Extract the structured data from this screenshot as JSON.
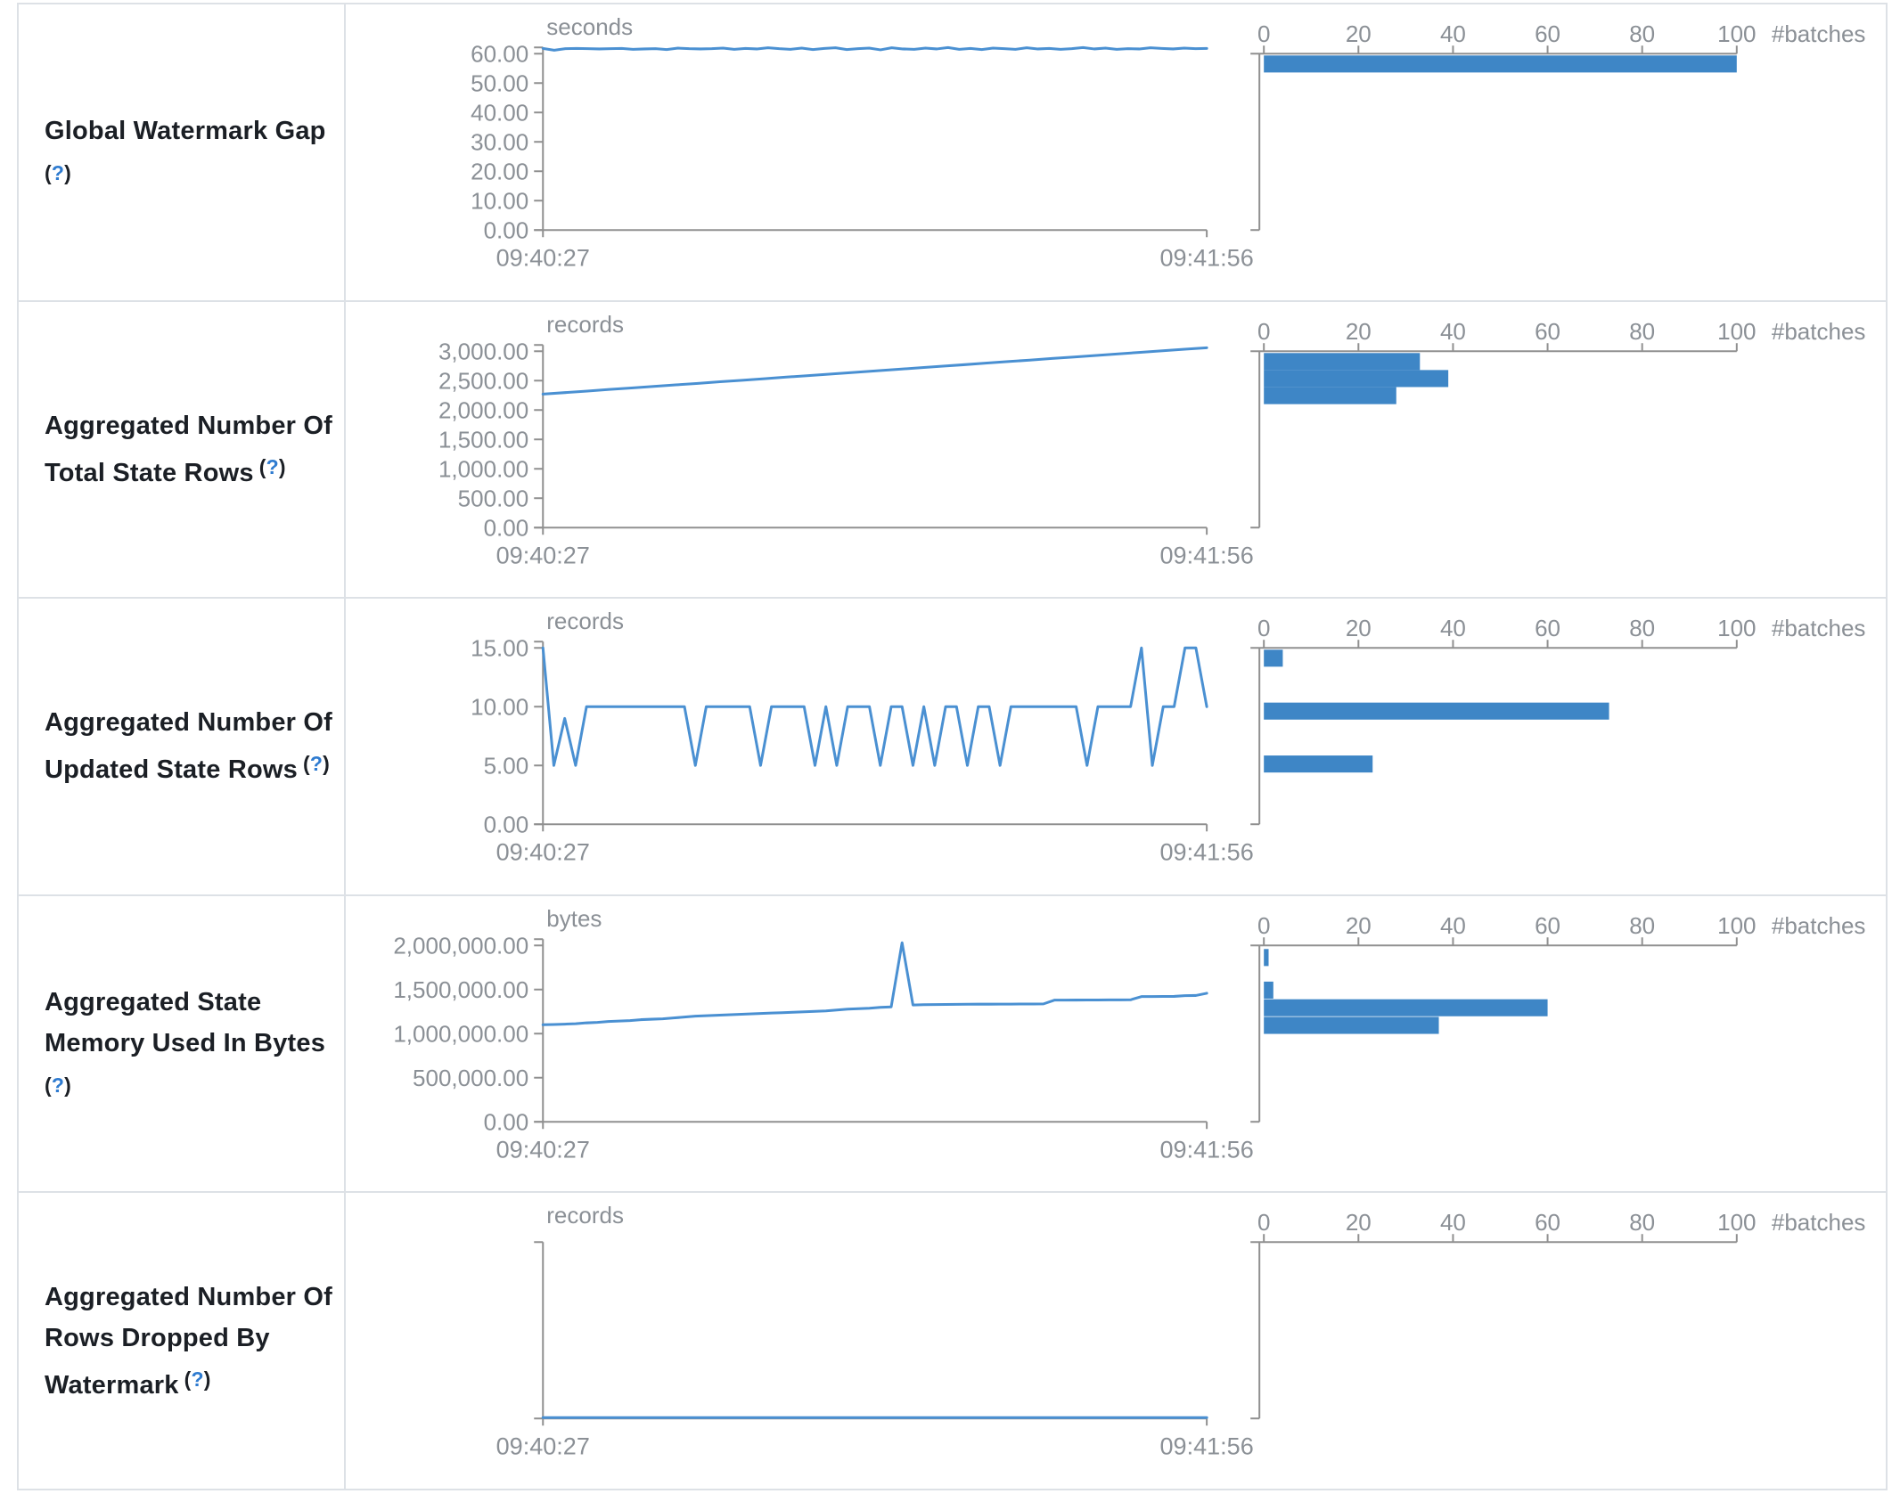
{
  "help": {
    "open": "(",
    "q": "?",
    "close": ")"
  },
  "colors": {
    "accent_bar": "#3e86c6",
    "accent_line": "#4a90d2",
    "axis": "#909090",
    "tick_label": "#8b9096",
    "title_text": "#1b1f25",
    "help_question": "#2e7bd0",
    "table_border": "#dde1e6"
  },
  "batches_axis": {
    "label": "#batches",
    "ticks": [
      0,
      20,
      40,
      60,
      80,
      100
    ],
    "max": 100
  },
  "x_time_axis": {
    "start_label": "09:40:27",
    "end_label": "09:41:56"
  },
  "chart_data": [
    {
      "panel": "Global Watermark Gap",
      "title_lines": [
        "Global Watermark Gap"
      ],
      "line_chart": {
        "type": "line",
        "unit": "seconds",
        "x": [
          "09:40:27",
          "09:41:56"
        ],
        "ylim": [
          0,
          60
        ],
        "y_max": 60,
        "y_tick_labels": [
          "60.00",
          "50.00",
          "40.00",
          "30.00",
          "20.00",
          "10.00",
          "0.00"
        ],
        "values": [
          61.8,
          61.2,
          61.7,
          61.8,
          61.7,
          61.6,
          61.7,
          61.8,
          61.5,
          61.6,
          61.7,
          61.4,
          61.9,
          61.7,
          61.6,
          61.7,
          61.9,
          61.5,
          61.8,
          61.6,
          62.0,
          61.7,
          61.5,
          61.9,
          61.4,
          61.8,
          62.0,
          61.4,
          61.7,
          61.9,
          61.3,
          62.0,
          61.6,
          61.5,
          61.9,
          61.6,
          62.1,
          61.5,
          61.8,
          61.4,
          61.9,
          61.7,
          61.5,
          62.0,
          61.6,
          61.8,
          61.5,
          61.7,
          62.1,
          61.6,
          61.9,
          61.5,
          61.7,
          61.6,
          62.0,
          61.8,
          61.6,
          61.9,
          61.7,
          61.8
        ]
      },
      "histogram": {
        "type": "bar",
        "xlabel": "#batches",
        "xlim": [
          0,
          100
        ],
        "x_ticks": [
          0,
          20,
          40,
          60,
          80,
          100
        ],
        "bins": [
          {
            "value": 60,
            "count": 100
          }
        ]
      }
    },
    {
      "panel": "Aggregated Number Of Total State Rows",
      "title_lines": [
        "Aggregated Number Of",
        "Total State Rows"
      ],
      "line_chart": {
        "type": "line",
        "unit": "records",
        "x": [
          "09:40:27",
          "09:41:56"
        ],
        "ylim": [
          0,
          3000
        ],
        "y_max": 3000,
        "y_tick_labels": [
          "3,000.00",
          "2,500.00",
          "2,000.00",
          "1,500.00",
          "1,000.00",
          "500.00",
          "0.00"
        ],
        "values": [
          2270,
          2296,
          2323,
          2349,
          2375,
          2402,
          2428,
          2454,
          2481,
          2507,
          2533,
          2560,
          2586,
          2612,
          2639,
          2665,
          2691,
          2718,
          2744,
          2770,
          2797,
          2823,
          2849,
          2876,
          2902,
          2928,
          2955,
          2981,
          3007,
          3034,
          3060
        ]
      },
      "histogram": {
        "type": "bar",
        "xlabel": "#batches",
        "xlim": [
          0,
          100
        ],
        "x_ticks": [
          0,
          20,
          40,
          60,
          80,
          100
        ],
        "bins": [
          {
            "value": 3000,
            "count": 33
          },
          {
            "value": 2710,
            "count": 39
          },
          {
            "value": 2420,
            "count": 28
          }
        ]
      }
    },
    {
      "panel": "Aggregated Number Of Updated State Rows",
      "title_lines": [
        "Aggregated Number Of",
        "Updated State Rows"
      ],
      "line_chart": {
        "type": "line",
        "unit": "records",
        "x": [
          "09:40:27",
          "09:41:56"
        ],
        "ylim": [
          0,
          15
        ],
        "y_max": 15,
        "y_tick_labels": [
          "15.00",
          "10.00",
          "5.00",
          "0.00"
        ],
        "values": [
          15,
          5,
          9,
          5,
          10,
          10,
          10,
          10,
          10,
          10,
          10,
          10,
          10,
          10,
          5,
          10,
          10,
          10,
          10,
          10,
          5,
          10,
          10,
          10,
          10,
          5,
          10,
          5,
          10,
          10,
          10,
          5,
          10,
          10,
          5,
          10,
          5,
          10,
          10,
          5,
          10,
          10,
          5,
          10,
          10,
          10,
          10,
          10,
          10,
          10,
          5,
          10,
          10,
          10,
          10,
          15,
          5,
          10,
          10,
          15,
          15,
          10
        ]
      },
      "histogram": {
        "type": "bar",
        "xlabel": "#batches",
        "xlim": [
          0,
          100
        ],
        "x_ticks": [
          0,
          20,
          40,
          60,
          80,
          100
        ],
        "bins": [
          {
            "value": 15,
            "count": 4
          },
          {
            "value": 10.5,
            "count": 73
          },
          {
            "value": 6,
            "count": 23
          }
        ]
      }
    },
    {
      "panel": "Aggregated State Memory Used In Bytes",
      "title_lines": [
        "Aggregated State",
        "Memory Used In Bytes"
      ],
      "line_chart": {
        "type": "line",
        "unit": "bytes",
        "x": [
          "09:40:27",
          "09:41:56"
        ],
        "ylim": [
          0,
          2000000
        ],
        "y_max": 2000000,
        "y_tick_labels": [
          "2,000,000.00",
          "1,500,000.00",
          "1,000,000.00",
          "500,000.00",
          "0.00"
        ],
        "values": [
          1100000,
          1104000,
          1108000,
          1113000,
          1122000,
          1128000,
          1138000,
          1143000,
          1148000,
          1158000,
          1163000,
          1168000,
          1178000,
          1188000,
          1198000,
          1203000,
          1208000,
          1213000,
          1218000,
          1223000,
          1228000,
          1233000,
          1238000,
          1243000,
          1248000,
          1253000,
          1258000,
          1268000,
          1278000,
          1283000,
          1288000,
          1298000,
          1303000,
          2030000,
          1325000,
          1328000,
          1330000,
          1331000,
          1332000,
          1333000,
          1334000,
          1334000,
          1335000,
          1335000,
          1336000,
          1336000,
          1337000,
          1380000,
          1380000,
          1381000,
          1382000,
          1382000,
          1383000,
          1383000,
          1384000,
          1420000,
          1420000,
          1421000,
          1422000,
          1430000,
          1432000,
          1458000
        ]
      },
      "histogram": {
        "type": "bar",
        "xlabel": "#batches",
        "xlim": [
          0,
          100
        ],
        "x_ticks": [
          0,
          20,
          40,
          60,
          80,
          100
        ],
        "bins": [
          {
            "value": 1980000,
            "count": 1
          },
          {
            "value": 1610000,
            "count": 2
          },
          {
            "value": 1410000,
            "count": 60
          },
          {
            "value": 1210000,
            "count": 37
          }
        ]
      }
    },
    {
      "panel": "Aggregated Number Of Rows Dropped By Watermark",
      "title_lines": [
        "Aggregated Number Of",
        "Rows Dropped By",
        "Watermark"
      ],
      "line_chart": {
        "type": "line",
        "unit": "records",
        "x": [
          "09:40:27",
          "09:41:56"
        ],
        "ylim": [
          0,
          1
        ],
        "y_max": 1,
        "y_tick_labels": [],
        "values": [
          0,
          0
        ]
      },
      "histogram": {
        "type": "bar",
        "xlabel": "#batches",
        "xlim": [
          0,
          100
        ],
        "x_ticks": [
          0,
          20,
          40,
          60,
          80,
          100
        ],
        "bins": []
      }
    }
  ]
}
